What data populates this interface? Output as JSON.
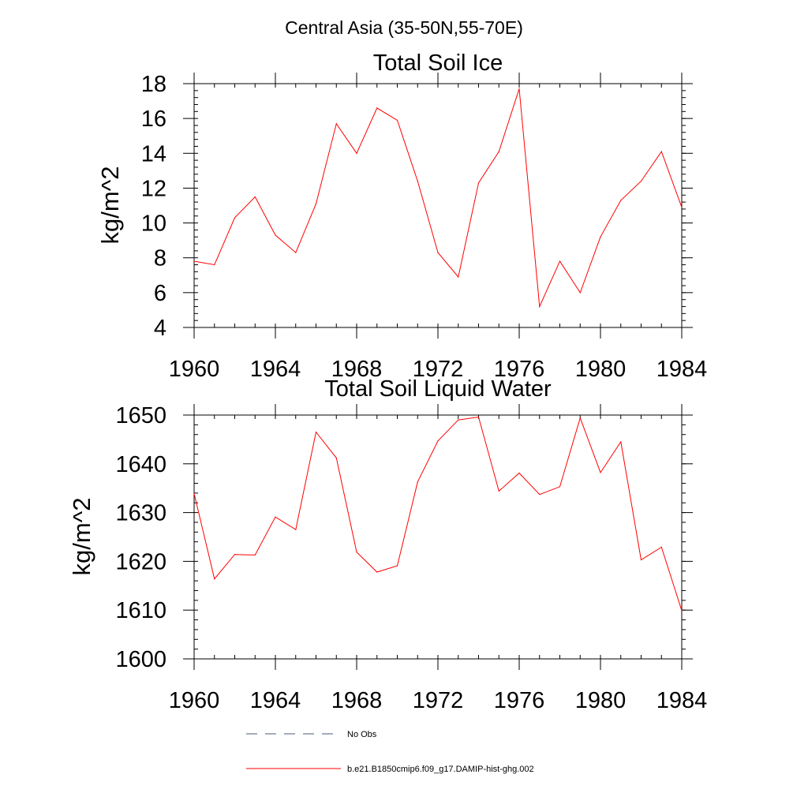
{
  "figure": {
    "suptitle": "Central Asia (35-50N,55-70E)"
  },
  "legend": {
    "placement": "bottom",
    "entries": [
      {
        "label": "No Obs",
        "style": "dashed",
        "color": "#4a5a78"
      },
      {
        "label": "b.e21.B1850cmip6.f09_g17.DAMIP-hist-ghg.002",
        "style": "solid",
        "color": "#ff0000"
      }
    ]
  },
  "chart_data": [
    {
      "type": "line",
      "title": "Total Soil Ice",
      "xlabel": "",
      "ylabel": "kg/m^2",
      "xlim": [
        1960,
        1984
      ],
      "ylim": [
        4,
        18
      ],
      "xticks": [
        1960,
        1964,
        1968,
        1972,
        1976,
        1980,
        1984
      ],
      "yticks": [
        4,
        6,
        8,
        10,
        12,
        14,
        16,
        18
      ],
      "grid": false,
      "x": [
        1960,
        1961,
        1962,
        1963,
        1964,
        1965,
        1966,
        1967,
        1968,
        1969,
        1970,
        1971,
        1972,
        1973,
        1974,
        1975,
        1976,
        1977,
        1978,
        1979,
        1980,
        1981,
        1982,
        1983,
        1984
      ],
      "series": [
        {
          "color": "#ff0000",
          "values": [
            7.8,
            7.6,
            10.3,
            11.5,
            9.3,
            8.3,
            11.1,
            15.7,
            14.0,
            16.6,
            15.9,
            12.4,
            8.3,
            6.9,
            12.3,
            14.1,
            17.7,
            5.2,
            7.8,
            6.0,
            9.2,
            11.3,
            12.4,
            14.1,
            10.9
          ]
        }
      ]
    },
    {
      "type": "line",
      "title": "Total Soil Liquid Water",
      "xlabel": "",
      "ylabel": "kg/m^2",
      "xlim": [
        1960,
        1984
      ],
      "ylim": [
        1600,
        1650
      ],
      "xticks": [
        1960,
        1964,
        1968,
        1972,
        1976,
        1980,
        1984
      ],
      "yticks": [
        1600,
        1610,
        1620,
        1630,
        1640,
        1650
      ],
      "grid": false,
      "x": [
        1960,
        1961,
        1962,
        1963,
        1964,
        1965,
        1966,
        1967,
        1968,
        1969,
        1970,
        1971,
        1972,
        1973,
        1974,
        1975,
        1976,
        1977,
        1978,
        1979,
        1980,
        1981,
        1982,
        1983,
        1984
      ],
      "series": [
        {
          "color": "#ff0000",
          "values": [
            1633.9,
            1616.4,
            1621.4,
            1621.3,
            1629.1,
            1626.5,
            1646.5,
            1641.2,
            1621.9,
            1617.8,
            1619.1,
            1636.3,
            1644.7,
            1649.0,
            1649.6,
            1634.4,
            1638.1,
            1633.7,
            1635.3,
            1649.4,
            1638.2,
            1644.5,
            1620.3,
            1622.9,
            1609.9
          ]
        }
      ]
    }
  ]
}
